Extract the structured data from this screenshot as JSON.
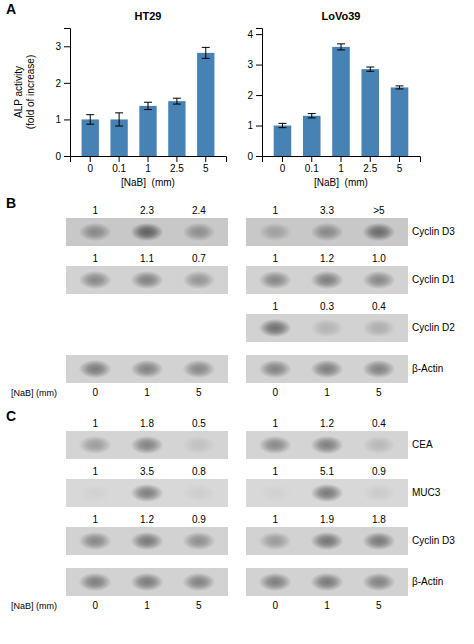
{
  "chart_data": [
    {
      "type": "bar",
      "panel": "A",
      "title": "HT29",
      "categories": [
        "0",
        "0.1",
        "1",
        "2.5",
        "5"
      ],
      "values": [
        1.0,
        1.0,
        1.37,
        1.5,
        2.82
      ],
      "errors": [
        0.13,
        0.18,
        0.1,
        0.08,
        0.15
      ],
      "ylim": [
        0,
        3.5
      ],
      "yticks": [
        0,
        1,
        2,
        3
      ],
      "xlabel": "[NaB]  (mm)",
      "ylabel": "ALP activity\n(fold of increase)"
    },
    {
      "type": "bar",
      "title": "LoVo39",
      "categories": [
        "0",
        "0.1",
        "1",
        "2.5",
        "5"
      ],
      "values": [
        1.0,
        1.32,
        3.58,
        2.85,
        2.25
      ],
      "errors": [
        0.07,
        0.07,
        0.1,
        0.07,
        0.05
      ],
      "ylim": [
        0,
        4.2
      ],
      "yticks": [
        0,
        1,
        2,
        3,
        4
      ],
      "xlabel": "[NaB]  (mm)"
    },
    {
      "type": "blot",
      "panel": "B",
      "categories": [
        "0",
        "1",
        "5"
      ],
      "xlabel": "[NaB] (mm)",
      "series": [
        {
          "color": "#c8c8c8",
          "values": [
            0.55,
            0.9,
            0.5
          ],
          "ratios": [
            "1",
            "2.3",
            "2.4"
          ]
        },
        {
          "color": "#d2d2d2",
          "values": [
            0.6,
            0.65,
            0.5
          ],
          "ratios": [
            "1",
            "1.1",
            "0.7"
          ]
        },
        {
          "color": "#d2d2d2",
          "values": [
            0.7,
            0.65,
            0.6
          ]
        }
      ]
    },
    {
      "type": "blot",
      "categories": [
        "0",
        "1",
        "5"
      ],
      "series": [
        {
          "name": "Cyclin D3",
          "color": "#c8c8c8",
          "values": [
            0.35,
            0.55,
            0.8
          ],
          "ratios": [
            "1",
            "3.3",
            ">5"
          ]
        },
        {
          "name": "Cyclin D1",
          "color": "#d2d2d2",
          "values": [
            0.6,
            0.68,
            0.6
          ],
          "ratios": [
            "1",
            "1.2",
            "1.0"
          ]
        },
        {
          "name": "Cyclin D2",
          "color": "#d2d2d2",
          "values": [
            0.8,
            0.25,
            0.3
          ],
          "ratios": [
            "1",
            "0.3",
            "0.4"
          ]
        },
        {
          "name": "β-Actin",
          "color": "#d2d2d2",
          "values": [
            0.65,
            0.68,
            0.65
          ]
        }
      ]
    },
    {
      "type": "blot",
      "panel": "C",
      "categories": [
        "0",
        "1",
        "5"
      ],
      "xlabel": "[NaB] (mm)",
      "series": [
        {
          "color": "#d4d4d4",
          "values": [
            0.45,
            0.65,
            0.15
          ],
          "ratios": [
            "1",
            "1.8",
            "0.5"
          ]
        },
        {
          "color": "#d8d8d8",
          "values": [
            0.05,
            0.7,
            0.08
          ],
          "ratios": [
            "1",
            "3.5",
            "0.8"
          ]
        },
        {
          "color": "#d2d2d2",
          "values": [
            0.6,
            0.72,
            0.55
          ],
          "ratios": [
            "1",
            "1.2",
            "0.9"
          ]
        },
        {
          "color": "#d2d2d2",
          "values": [
            0.68,
            0.7,
            0.65
          ]
        }
      ]
    },
    {
      "type": "blot",
      "categories": [
        "0",
        "1",
        "5"
      ],
      "series": [
        {
          "name": "CEA",
          "color": "#d4d4d4",
          "values": [
            0.6,
            0.68,
            0.22
          ],
          "ratios": [
            "1",
            "1.2",
            "0.4"
          ]
        },
        {
          "name": "MUC3",
          "color": "#d8d8d8",
          "values": [
            0.05,
            0.75,
            0.1
          ],
          "ratios": [
            "1",
            "5.1",
            "0.9"
          ]
        },
        {
          "name": "Cyclin D3",
          "color": "#d2d2d2",
          "values": [
            0.45,
            0.75,
            0.72
          ],
          "ratios": [
            "1",
            "1.9",
            "1.8"
          ]
        },
        {
          "name": "β-Actin",
          "color": "#d2d2d2",
          "values": [
            0.68,
            0.72,
            0.65
          ]
        }
      ]
    }
  ]
}
